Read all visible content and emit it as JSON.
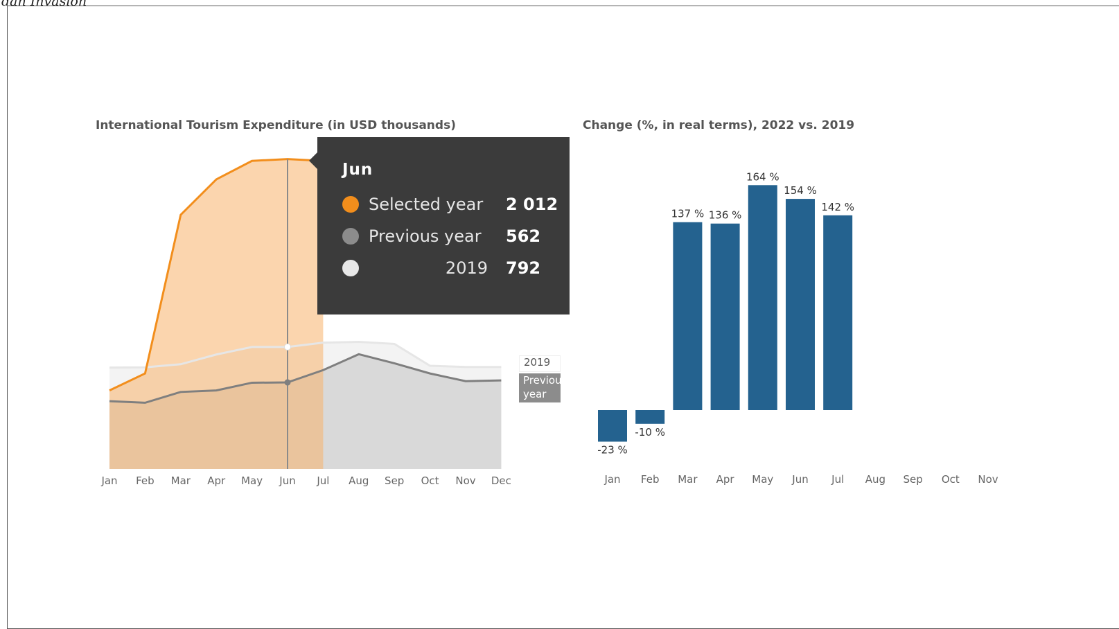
{
  "top_caption": "dan Invasion",
  "chart_data": [
    {
      "type": "area",
      "title": "International Tourism Expenditure (in USD thousands)",
      "categories": [
        "Jan",
        "Feb",
        "Mar",
        "Apr",
        "May",
        "Jun",
        "Jul",
        "Aug",
        "Sep",
        "Oct",
        "Nov",
        "Dec"
      ],
      "ylim": [
        0,
        2100
      ],
      "series": [
        {
          "name": "Selected year",
          "color": "#F28E1C",
          "values": [
            510,
            620,
            1650,
            1880,
            2000,
            2012,
            2000,
            null,
            null,
            null,
            null,
            null
          ]
        },
        {
          "name": "Previous year",
          "color": "#7f7f7f",
          "values": [
            440,
            430,
            500,
            510,
            560,
            562,
            642,
            745,
            686,
            620,
            570,
            575
          ]
        },
        {
          "name": "2019",
          "color": "#e6e6e6",
          "values": [
            658,
            660,
            680,
            743,
            792,
            792,
            820,
            825,
            812,
            670,
            662,
            662
          ]
        }
      ],
      "highlight_category": "Jun",
      "grid": false
    },
    {
      "type": "bar",
      "title": "Change (%, in real terms), 2022 vs. 2019",
      "categories": [
        "Jan",
        "Feb",
        "Mar",
        "Apr",
        "May",
        "Jun",
        "Jul",
        "Aug",
        "Sep",
        "Oct",
        "Nov"
      ],
      "values": [
        -23,
        -10,
        137,
        136,
        164,
        154,
        142,
        null,
        null,
        null,
        null
      ],
      "labels": [
        "-23 %",
        "-10 %",
        "137 %",
        "136 %",
        "164 %",
        "154 %",
        "142 %",
        "",
        "",
        "",
        ""
      ],
      "color": "#24628F",
      "ylim": [
        -30,
        170
      ],
      "grid": false
    }
  ],
  "tooltip": {
    "title": "Jun",
    "rows": [
      {
        "label": "Selected year",
        "value": "2 012",
        "color": "#F28E1C"
      },
      {
        "label": "Previous year",
        "value": "562",
        "color": "#8c8c8c"
      },
      {
        "label": "2019",
        "value": "792",
        "color": "#e8e8e8"
      }
    ]
  },
  "legend": {
    "label_2019": "2019",
    "label_prev": "Previous year"
  }
}
